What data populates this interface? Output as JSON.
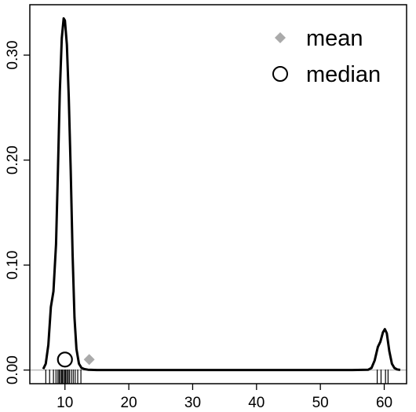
{
  "chart_data": {
    "type": "line",
    "title": "",
    "xlabel": "",
    "ylabel": "",
    "xlim": [
      4.5,
      63.5
    ],
    "ylim": [
      -0.013,
      0.348
    ],
    "x_ticks": [
      10,
      20,
      30,
      40,
      50,
      60
    ],
    "y_ticks": [
      0.0,
      0.1,
      0.2,
      0.3
    ],
    "x_tick_labels": [
      "10",
      "20",
      "30",
      "40",
      "50",
      "60"
    ],
    "y_tick_labels": [
      "0.00",
      "0.10",
      "0.20",
      "0.30"
    ],
    "grid": false,
    "legend_position": "top-right",
    "series": [
      {
        "name": "",
        "x": [
          6.6,
          7.0,
          7.4,
          7.8,
          8.2,
          8.6,
          8.9,
          9.2,
          9.5,
          9.8,
          10.0,
          10.3,
          10.6,
          10.9,
          11.2,
          11.5,
          11.8,
          12.2,
          12.6,
          13.0,
          13.6,
          15,
          20,
          25,
          30,
          35,
          40,
          45,
          50,
          55,
          57.5,
          58.0,
          58.5,
          59.0,
          59.4,
          59.8,
          60.1,
          60.4,
          60.8,
          61.2,
          61.6,
          62.0,
          62.5
        ],
        "y": [
          0.001,
          0.006,
          0.024,
          0.06,
          0.075,
          0.12,
          0.19,
          0.265,
          0.316,
          0.335,
          0.333,
          0.31,
          0.26,
          0.19,
          0.11,
          0.05,
          0.02,
          0.006,
          0.002,
          0.001,
          0.0003,
          0,
          0,
          0,
          0,
          0,
          0,
          0,
          0,
          0,
          0.0003,
          0.002,
          0.009,
          0.022,
          0.027,
          0.036,
          0.039,
          0.035,
          0.018,
          0.006,
          0.002,
          0.0006,
          0.0001
        ]
      }
    ],
    "rug": [
      7.0,
      7.6,
      8.2,
      8.6,
      8.9,
      9.1,
      9.3,
      9.5,
      9.6,
      9.8,
      10.0,
      10.1,
      10.3,
      10.5,
      10.7,
      11.0,
      11.3,
      11.6,
      12.0,
      12.5,
      58.9,
      59.5,
      60.2,
      60.6
    ],
    "markers": [
      {
        "name": "mean",
        "x": 13.8,
        "y": 0.01,
        "shape": "diamond",
        "color": "#aaaaaa"
      },
      {
        "name": "median",
        "x": 10.0,
        "y": 0.01,
        "shape": "circle",
        "color": "#000000"
      }
    ],
    "legend": [
      {
        "label": "mean",
        "shape": "diamond",
        "color": "#aaaaaa"
      },
      {
        "label": "median",
        "shape": "circle",
        "color": "#000000"
      }
    ],
    "colors": {
      "line": "#000000",
      "baseline": "#bbbbbb",
      "mean": "#aaaaaa"
    }
  }
}
